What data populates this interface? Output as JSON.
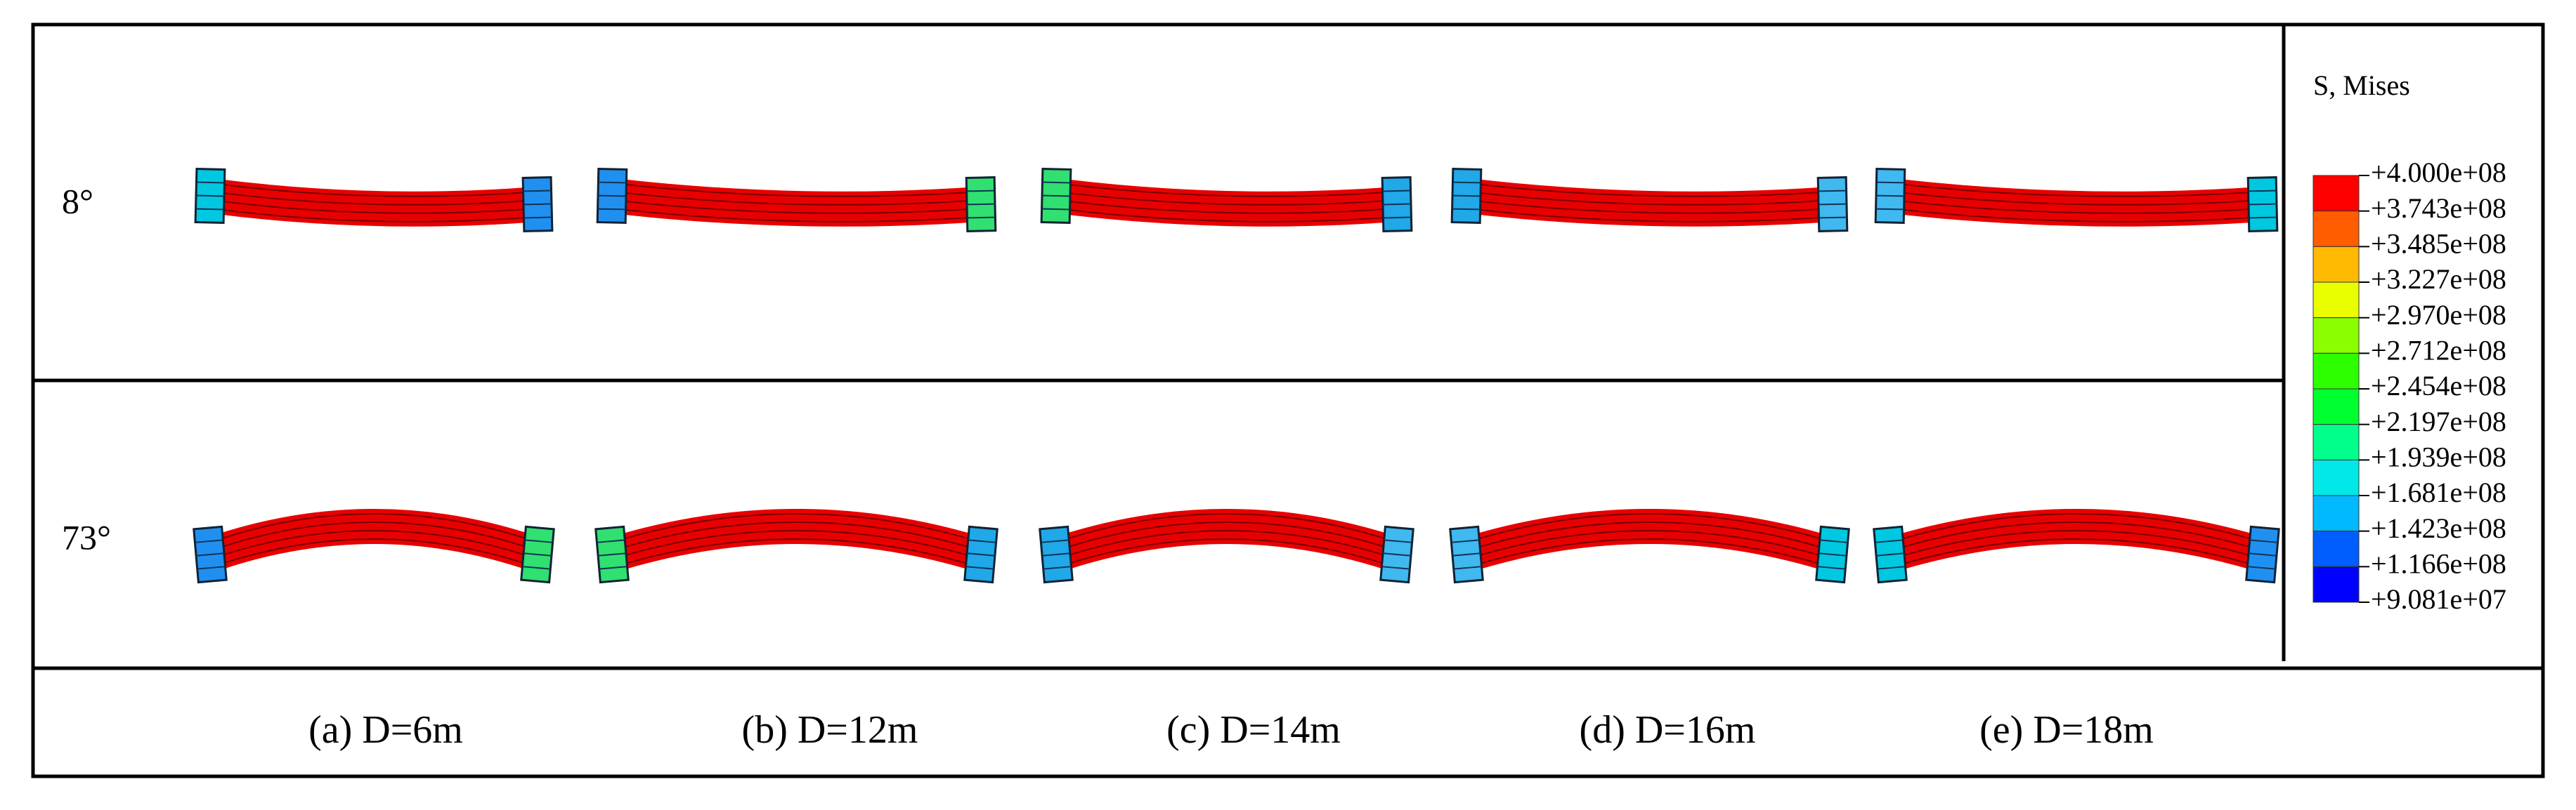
{
  "row_labels": [
    "8°",
    "73°"
  ],
  "captions": [
    "(a) D=6m",
    "(b) D=12m",
    "(c) D=14m",
    "(d) D=16m",
    "(e) D=18m"
  ],
  "legend": {
    "title": "S, Mises",
    "labels": [
      "+4.000e+08",
      "+3.743e+08",
      "+3.485e+08",
      "+3.227e+08",
      "+2.970e+08",
      "+2.712e+08",
      "+2.454e+08",
      "+2.197e+08",
      "+1.939e+08",
      "+1.681e+08",
      "+1.423e+08",
      "+1.166e+08",
      "+9.081e+07"
    ],
    "colors": [
      "#ff0000",
      "#ff5d00",
      "#ffb900",
      "#e9ff00",
      "#8bff00",
      "#2eff00",
      "#00ff2e",
      "#00ff8b",
      "#00e8e8",
      "#00b9ff",
      "#005dff",
      "#0000ff"
    ]
  }
}
